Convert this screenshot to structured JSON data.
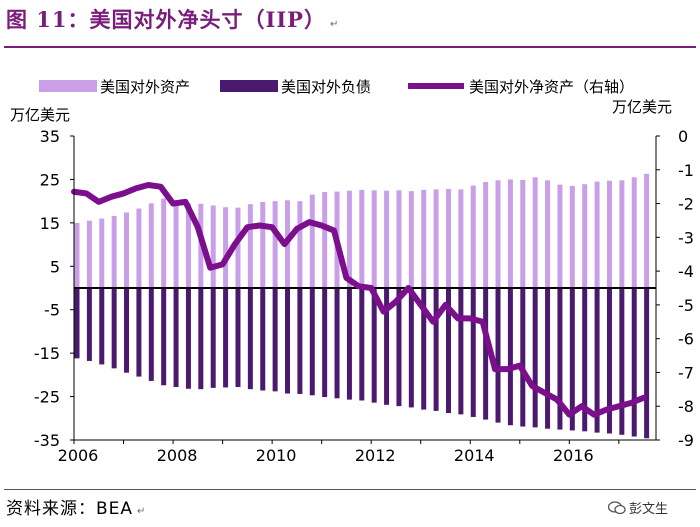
{
  "header": {
    "title": "图 11：美国对外净头寸（IIP）"
  },
  "footer": {
    "source": "资料来源：BEA",
    "watermark": "彭文生"
  },
  "colors": {
    "assets": "#c9a0e8",
    "liabilities": "#4b1a6e",
    "net": "#7b0f8c",
    "title": "#7a1d7a"
  },
  "chart_data": {
    "type": "bar",
    "title": "",
    "legend": [
      "美国对外资产",
      "美国对外负债",
      "美国对外净资产（右轴）"
    ],
    "legend_position": "top",
    "y_unit_left": "万亿美元",
    "y_unit_right": "万亿美元",
    "ylim_left": [
      -35,
      35
    ],
    "yticks_left": [
      35,
      25,
      15,
      5,
      -5,
      -15,
      -25,
      -35
    ],
    "ylim_right": [
      -9,
      0
    ],
    "yticks_right": [
      0,
      -1,
      -2,
      -3,
      -4,
      -5,
      -6,
      -7,
      -8,
      -9
    ],
    "xlim": [
      2006,
      2017.75
    ],
    "xticks": [
      "2006",
      "2008",
      "2010",
      "2012",
      "2014",
      "2016"
    ],
    "x": [
      2006.0,
      2006.25,
      2006.5,
      2006.75,
      2007.0,
      2007.25,
      2007.5,
      2007.75,
      2008.0,
      2008.25,
      2008.5,
      2008.75,
      2009.0,
      2009.25,
      2009.5,
      2009.75,
      2010.0,
      2010.25,
      2010.5,
      2010.75,
      2011.0,
      2011.25,
      2011.5,
      2011.75,
      2012.0,
      2012.25,
      2012.5,
      2012.75,
      2013.0,
      2013.25,
      2013.5,
      2013.75,
      2014.0,
      2014.25,
      2014.5,
      2014.75,
      2015.0,
      2015.25,
      2015.5,
      2015.75,
      2016.0,
      2016.25,
      2016.5,
      2016.75,
      2017.0,
      2017.25,
      2017.5
    ],
    "series": [
      {
        "name": "美国对外资产",
        "axis": "left",
        "values": [
          15.0,
          15.5,
          16.0,
          16.6,
          17.4,
          18.3,
          19.5,
          20.6,
          20.2,
          19.5,
          19.4,
          19.0,
          18.6,
          18.5,
          19.3,
          19.8,
          20.0,
          20.2,
          20.0,
          21.5,
          22.1,
          22.2,
          22.4,
          22.6,
          22.5,
          22.4,
          22.5,
          22.3,
          22.6,
          22.7,
          22.8,
          22.7,
          23.6,
          24.4,
          24.8,
          25.0,
          24.9,
          25.5,
          24.8,
          23.8,
          23.5,
          23.9,
          24.5,
          24.7,
          24.8,
          25.5,
          26.3
        ]
      },
      {
        "name": "美国对外负债",
        "axis": "left",
        "values": [
          -16.2,
          -16.8,
          -17.6,
          -18.5,
          -19.5,
          -20.4,
          -21.4,
          -22.4,
          -22.8,
          -23.2,
          -23.3,
          -23.0,
          -22.9,
          -22.8,
          -23.3,
          -23.6,
          -23.8,
          -24.3,
          -24.4,
          -24.7,
          -25.1,
          -25.4,
          -25.7,
          -25.9,
          -26.4,
          -26.9,
          -27.2,
          -27.5,
          -28.0,
          -28.3,
          -28.8,
          -29.1,
          -29.7,
          -30.3,
          -31.0,
          -31.6,
          -31.9,
          -32.1,
          -32.4,
          -32.6,
          -32.8,
          -33.0,
          -33.3,
          -33.5,
          -33.8,
          -34.2,
          -34.6
        ]
      },
      {
        "name": "美国对外净资产（右轴）",
        "axis": "right",
        "values": [
          -1.65,
          -1.7,
          -1.95,
          -1.8,
          -1.7,
          -1.55,
          -1.45,
          -1.5,
          -2.0,
          -1.95,
          -2.7,
          -3.9,
          -3.8,
          -3.2,
          -2.7,
          -2.65,
          -2.7,
          -3.2,
          -2.75,
          -2.55,
          -2.65,
          -2.8,
          -4.2,
          -4.45,
          -4.5,
          -5.2,
          -4.9,
          -4.5,
          -5.0,
          -5.5,
          -5.0,
          -5.4,
          -5.4,
          -5.5,
          -6.9,
          -6.9,
          -6.8,
          -7.4,
          -7.6,
          -7.8,
          -8.25,
          -8.0,
          -8.25,
          -8.1,
          -8.0,
          -7.9,
          -7.75
        ]
      }
    ]
  }
}
